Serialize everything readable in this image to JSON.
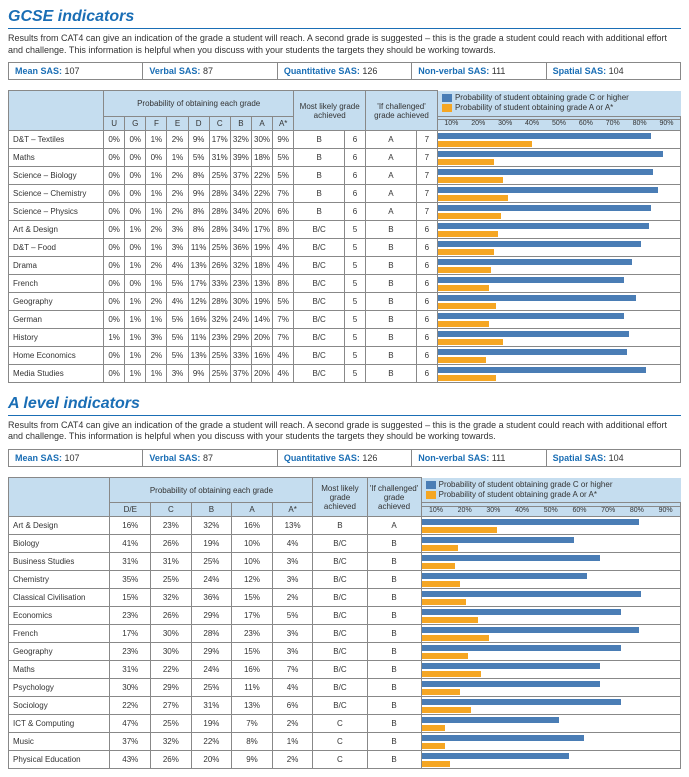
{
  "colors": {
    "blue": "#4a7db5",
    "orange": "#f5a623",
    "heading": "#1a6eb5"
  },
  "sas": {
    "mean_lbl": "Mean SAS:",
    "mean": "107",
    "verbal_lbl": "Verbal SAS:",
    "verbal": "87",
    "quant_lbl": "Quantitative SAS:",
    "quant": "126",
    "nonverbal_lbl": "Non-verbal SAS:",
    "nonverbal": "111",
    "spatial_lbl": "Spatial SAS:",
    "spatial": "104"
  },
  "desc": "Results from CAT4 can give an indication of the grade a student will reach. A second grade is suggested – this is the grade a student could reach with additional effort and challenge. This information is helpful when you discuss with your students the targets they should be working towards.",
  "gcse": {
    "title": "GCSE indicators",
    "head_prob": "Probability of obtaining each grade",
    "head_ml": "Most likely grade achieved",
    "head_if": "'If challenged' grade achieved",
    "head_chartC": "Probability of student obtaining grade C or higher",
    "head_chartA": "Probability of student obtaining grade A or A*",
    "grades": [
      "U",
      "G",
      "F",
      "E",
      "D",
      "C",
      "B",
      "A",
      "A*"
    ],
    "axis": [
      "10%",
      "20%",
      "30%",
      "40%",
      "50%",
      "60%",
      "70%",
      "80%",
      "90%"
    ],
    "rows": [
      {
        "s": "D&T – Textiles",
        "g": [
          "0%",
          "0%",
          "1%",
          "2%",
          "9%",
          "17%",
          "32%",
          "30%",
          "9%"
        ],
        "ml": "B",
        "mln": "6",
        "if": "A",
        "ifn": "7",
        "pc": 88,
        "pa": 39
      },
      {
        "s": "Maths",
        "g": [
          "0%",
          "0%",
          "0%",
          "1%",
          "5%",
          "31%",
          "39%",
          "18%",
          "5%"
        ],
        "ml": "B",
        "mln": "6",
        "if": "A",
        "ifn": "7",
        "pc": 93,
        "pa": 23
      },
      {
        "s": "Science – Biology",
        "g": [
          "0%",
          "0%",
          "1%",
          "2%",
          "8%",
          "25%",
          "37%",
          "22%",
          "5%"
        ],
        "ml": "B",
        "mln": "6",
        "if": "A",
        "ifn": "7",
        "pc": 89,
        "pa": 27
      },
      {
        "s": "Science – Chemistry",
        "g": [
          "0%",
          "0%",
          "1%",
          "2%",
          "9%",
          "28%",
          "34%",
          "22%",
          "7%"
        ],
        "ml": "B",
        "mln": "6",
        "if": "A",
        "ifn": "7",
        "pc": 91,
        "pa": 29
      },
      {
        "s": "Science – Physics",
        "g": [
          "0%",
          "0%",
          "1%",
          "2%",
          "8%",
          "28%",
          "34%",
          "20%",
          "6%"
        ],
        "ml": "B",
        "mln": "6",
        "if": "A",
        "ifn": "7",
        "pc": 88,
        "pa": 26
      },
      {
        "s": "Art & Design",
        "g": [
          "0%",
          "1%",
          "2%",
          "3%",
          "8%",
          "28%",
          "34%",
          "17%",
          "8%"
        ],
        "ml": "B/C",
        "mln": "5",
        "if": "B",
        "ifn": "6",
        "pc": 87,
        "pa": 25
      },
      {
        "s": "D&T – Food",
        "g": [
          "0%",
          "0%",
          "1%",
          "3%",
          "11%",
          "25%",
          "36%",
          "19%",
          "4%"
        ],
        "ml": "B/C",
        "mln": "5",
        "if": "B",
        "ifn": "6",
        "pc": 84,
        "pa": 23
      },
      {
        "s": "Drama",
        "g": [
          "0%",
          "1%",
          "2%",
          "4%",
          "13%",
          "26%",
          "32%",
          "18%",
          "4%"
        ],
        "ml": "B/C",
        "mln": "5",
        "if": "B",
        "ifn": "6",
        "pc": 80,
        "pa": 22
      },
      {
        "s": "French",
        "g": [
          "0%",
          "0%",
          "1%",
          "5%",
          "17%",
          "33%",
          "23%",
          "13%",
          "8%"
        ],
        "ml": "B/C",
        "mln": "5",
        "if": "B",
        "ifn": "6",
        "pc": 77,
        "pa": 21
      },
      {
        "s": "Geography",
        "g": [
          "0%",
          "1%",
          "2%",
          "4%",
          "12%",
          "28%",
          "30%",
          "19%",
          "5%"
        ],
        "ml": "B/C",
        "mln": "5",
        "if": "B",
        "ifn": "6",
        "pc": 82,
        "pa": 24
      },
      {
        "s": "German",
        "g": [
          "0%",
          "1%",
          "1%",
          "5%",
          "16%",
          "32%",
          "24%",
          "14%",
          "7%"
        ],
        "ml": "B/C",
        "mln": "5",
        "if": "B",
        "ifn": "6",
        "pc": 77,
        "pa": 21
      },
      {
        "s": "History",
        "g": [
          "1%",
          "1%",
          "3%",
          "5%",
          "11%",
          "23%",
          "29%",
          "20%",
          "7%"
        ],
        "ml": "B/C",
        "mln": "5",
        "if": "B",
        "ifn": "6",
        "pc": 79,
        "pa": 27
      },
      {
        "s": "Home Economics",
        "g": [
          "0%",
          "1%",
          "2%",
          "5%",
          "13%",
          "25%",
          "33%",
          "16%",
          "4%"
        ],
        "ml": "B/C",
        "mln": "5",
        "if": "B",
        "ifn": "6",
        "pc": 78,
        "pa": 20
      },
      {
        "s": "Media Studies",
        "g": [
          "0%",
          "1%",
          "1%",
          "3%",
          "9%",
          "25%",
          "37%",
          "20%",
          "4%"
        ],
        "ml": "B/C",
        "mln": "5",
        "if": "B",
        "ifn": "6",
        "pc": 86,
        "pa": 24
      }
    ]
  },
  "alevel": {
    "title": "A level indicators",
    "head_prob": "Probability of obtaining each grade",
    "head_ml": "Most likely grade achieved",
    "head_if": "'If challenged' grade achieved",
    "head_chartC": "Probability of student obtaining grade C or higher",
    "head_chartA": "Probability of student obtaining grade A or A*",
    "grades": [
      "D/E",
      "C",
      "B",
      "A",
      "A*"
    ],
    "axis": [
      "10%",
      "20%",
      "30%",
      "40%",
      "50%",
      "60%",
      "70%",
      "80%",
      "90%"
    ],
    "rows": [
      {
        "s": "Art & Design",
        "g": [
          "16%",
          "23%",
          "32%",
          "16%",
          "13%"
        ],
        "ml": "B",
        "if": "A",
        "pc": 84,
        "pa": 29
      },
      {
        "s": "Biology",
        "g": [
          "41%",
          "26%",
          "19%",
          "10%",
          "4%"
        ],
        "ml": "B/C",
        "if": "B",
        "pc": 59,
        "pa": 14
      },
      {
        "s": "Business Studies",
        "g": [
          "31%",
          "31%",
          "25%",
          "10%",
          "3%"
        ],
        "ml": "B/C",
        "if": "B",
        "pc": 69,
        "pa": 13
      },
      {
        "s": "Chemistry",
        "g": [
          "35%",
          "25%",
          "24%",
          "12%",
          "3%"
        ],
        "ml": "B/C",
        "if": "B",
        "pc": 64,
        "pa": 15
      },
      {
        "s": "Classical Civilisation",
        "g": [
          "15%",
          "32%",
          "36%",
          "15%",
          "2%"
        ],
        "ml": "B/C",
        "if": "B",
        "pc": 85,
        "pa": 17
      },
      {
        "s": "Economics",
        "g": [
          "23%",
          "26%",
          "29%",
          "17%",
          "5%"
        ],
        "ml": "B/C",
        "if": "B",
        "pc": 77,
        "pa": 22
      },
      {
        "s": "French",
        "g": [
          "17%",
          "30%",
          "28%",
          "23%",
          "3%"
        ],
        "ml": "B/C",
        "if": "B",
        "pc": 84,
        "pa": 26
      },
      {
        "s": "Geography",
        "g": [
          "23%",
          "30%",
          "29%",
          "15%",
          "3%"
        ],
        "ml": "B/C",
        "if": "B",
        "pc": 77,
        "pa": 18
      },
      {
        "s": "Maths",
        "g": [
          "31%",
          "22%",
          "24%",
          "16%",
          "7%"
        ],
        "ml": "B/C",
        "if": "B",
        "pc": 69,
        "pa": 23
      },
      {
        "s": "Psychology",
        "g": [
          "30%",
          "29%",
          "25%",
          "11%",
          "4%"
        ],
        "ml": "B/C",
        "if": "B",
        "pc": 69,
        "pa": 15
      },
      {
        "s": "Sociology",
        "g": [
          "22%",
          "27%",
          "31%",
          "13%",
          "6%"
        ],
        "ml": "B/C",
        "if": "B",
        "pc": 77,
        "pa": 19
      },
      {
        "s": "ICT & Computing",
        "g": [
          "47%",
          "25%",
          "19%",
          "7%",
          "2%"
        ],
        "ml": "C",
        "if": "B",
        "pc": 53,
        "pa": 9
      },
      {
        "s": "Music",
        "g": [
          "37%",
          "32%",
          "22%",
          "8%",
          "1%"
        ],
        "ml": "C",
        "if": "B",
        "pc": 63,
        "pa": 9
      },
      {
        "s": "Physical Education",
        "g": [
          "43%",
          "26%",
          "20%",
          "9%",
          "2%"
        ],
        "ml": "C",
        "if": "B",
        "pc": 57,
        "pa": 11
      }
    ]
  }
}
